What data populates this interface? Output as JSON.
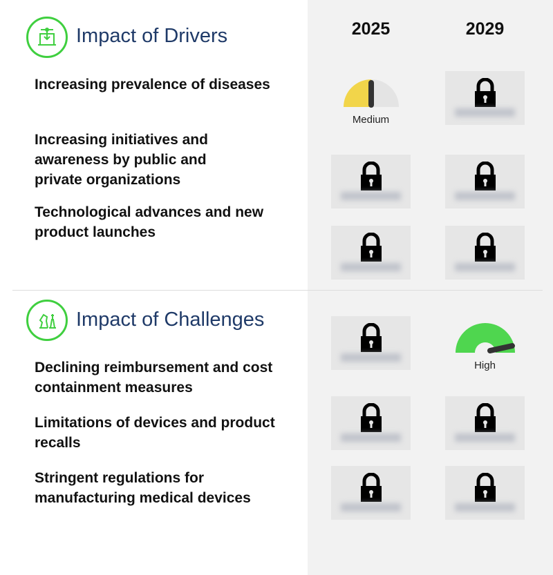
{
  "columns": [
    "2025",
    "2029"
  ],
  "drivers": {
    "title": "Impact of Drivers",
    "icon": "tech-device-icon",
    "items": [
      {
        "label": "Increasing prevalence of diseases",
        "y2025": {
          "level": "Medium",
          "locked": false
        },
        "y2029": {
          "locked": true
        }
      },
      {
        "label": "Increasing initiatives and awareness by public and private organizations",
        "y2025": {
          "locked": true
        },
        "y2029": {
          "locked": true
        }
      },
      {
        "label": "Technological advances and new product launches",
        "y2025": {
          "locked": true
        },
        "y2029": {
          "locked": true
        }
      }
    ]
  },
  "challenges": {
    "title": "Impact of Challenges",
    "icon": "chess-pieces-icon",
    "items": [
      {
        "label": "Declining reimbursement and cost containment measures",
        "y2025": {
          "locked": true
        },
        "y2029": {
          "level": "High",
          "locked": false
        }
      },
      {
        "label": "Limitations of devices and product recalls",
        "y2025": {
          "locked": true
        },
        "y2029": {
          "locked": true
        }
      },
      {
        "label": "Stringent regulations for manufacturing medical devices",
        "y2025": {
          "locked": true
        },
        "y2029": {
          "locked": true
        }
      }
    ]
  },
  "colors": {
    "accent": "#3fcf3f",
    "title": "#1f3a68",
    "medium": "#f2d54a",
    "high": "#4fd64f",
    "panel": "#f2f2f2"
  }
}
